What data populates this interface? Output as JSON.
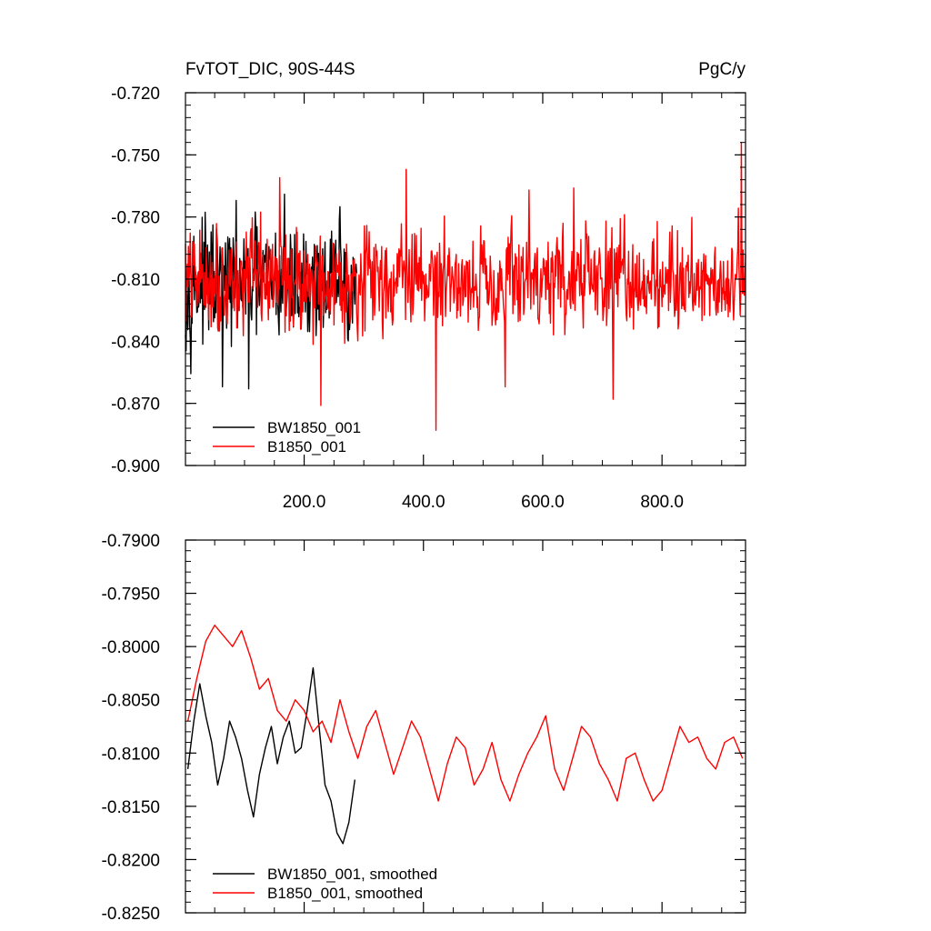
{
  "chart_data": [
    {
      "type": "line",
      "title_left": "FvTOT_DIC, 90S-44S",
      "title_right": "PgC/y",
      "xlabel": "",
      "ylabel": "",
      "xlim": [
        1,
        940
      ],
      "ylim": [
        -0.9,
        -0.72
      ],
      "x_ticks": [
        200,
        400,
        600,
        800
      ],
      "x_tick_labels": [
        "200.0",
        "400.0",
        "600.0",
        "800.0"
      ],
      "y_ticks": [
        -0.72,
        -0.75,
        -0.78,
        -0.81,
        -0.84,
        -0.87,
        -0.9
      ],
      "y_tick_labels": [
        "-0.720",
        "-0.750",
        "-0.780",
        "-0.810",
        "-0.840",
        "-0.870",
        "-0.900"
      ],
      "legend_position": "bottom-left",
      "series": [
        {
          "name": "BW1850_001",
          "color": "#000000",
          "x_start": 1,
          "x_end": 288,
          "mean": -0.812,
          "amplitude": 0.016,
          "extremes": [
            [
              107,
              -0.863
            ],
            [
              167,
              -0.769
            ],
            [
              63,
              -0.862
            ],
            [
              260,
              -0.775
            ]
          ]
        },
        {
          "name": "B1850_001",
          "color": "#ff0000",
          "x_start": 1,
          "x_end": 940,
          "mean": -0.81,
          "amplitude": 0.014,
          "extremes": [
            [
              421,
              -0.883
            ],
            [
              228,
              -0.871
            ],
            [
              537,
              -0.862
            ],
            [
              718,
              -0.868
            ],
            [
              933,
              -0.744
            ],
            [
              371,
              -0.757
            ],
            [
              577,
              -0.767
            ],
            [
              652,
              -0.766
            ],
            [
              159,
              -0.761
            ]
          ]
        }
      ]
    },
    {
      "type": "line",
      "title": "",
      "xlabel": "",
      "ylabel": "",
      "xlim": [
        1,
        940
      ],
      "ylim": [
        -0.825,
        -0.79
      ],
      "x_ticks": [
        200,
        400,
        600,
        800
      ],
      "y_ticks": [
        -0.79,
        -0.795,
        -0.8,
        -0.805,
        -0.81,
        -0.815,
        -0.82,
        -0.825
      ],
      "y_tick_labels": [
        "-0.7900",
        "-0.7950",
        "-0.8000",
        "-0.8050",
        "-0.8100",
        "-0.8150",
        "-0.8200",
        "-0.8250"
      ],
      "legend_position": "bottom-left",
      "series": [
        {
          "name": "BW1850_001, smoothed",
          "color": "#000000",
          "x": [
            5,
            15,
            25,
            35,
            45,
            55,
            65,
            75,
            85,
            95,
            105,
            115,
            125,
            135,
            145,
            155,
            165,
            175,
            185,
            195,
            205,
            215,
            225,
            235,
            245,
            255,
            265,
            275,
            285
          ],
          "y": [
            -0.8115,
            -0.807,
            -0.8035,
            -0.8065,
            -0.809,
            -0.813,
            -0.8105,
            -0.807,
            -0.8085,
            -0.8105,
            -0.8135,
            -0.816,
            -0.812,
            -0.8095,
            -0.8075,
            -0.811,
            -0.8085,
            -0.807,
            -0.81,
            -0.8095,
            -0.806,
            -0.802,
            -0.8075,
            -0.813,
            -0.8145,
            -0.8175,
            -0.8185,
            -0.8165,
            -0.8125
          ]
        },
        {
          "name": "B1850_001, smoothed",
          "color": "#ff0000",
          "x": [
            5,
            20,
            35,
            50,
            65,
            80,
            95,
            110,
            125,
            140,
            155,
            170,
            185,
            200,
            215,
            230,
            245,
            260,
            275,
            290,
            305,
            320,
            335,
            350,
            365,
            380,
            395,
            410,
            425,
            440,
            455,
            470,
            485,
            500,
            515,
            530,
            545,
            560,
            575,
            590,
            605,
            620,
            635,
            650,
            665,
            680,
            695,
            710,
            725,
            740,
            755,
            770,
            785,
            800,
            815,
            830,
            845,
            860,
            875,
            890,
            905,
            920,
            935
          ],
          "y": [
            -0.807,
            -0.803,
            -0.7995,
            -0.798,
            -0.799,
            -0.8,
            -0.7985,
            -0.801,
            -0.804,
            -0.803,
            -0.806,
            -0.807,
            -0.805,
            -0.806,
            -0.808,
            -0.807,
            -0.809,
            -0.805,
            -0.808,
            -0.8105,
            -0.8075,
            -0.806,
            -0.809,
            -0.812,
            -0.8095,
            -0.807,
            -0.8085,
            -0.8115,
            -0.8145,
            -0.811,
            -0.8085,
            -0.8095,
            -0.813,
            -0.8115,
            -0.809,
            -0.8125,
            -0.8145,
            -0.812,
            -0.81,
            -0.8085,
            -0.8065,
            -0.8115,
            -0.8135,
            -0.8105,
            -0.8075,
            -0.8085,
            -0.811,
            -0.8125,
            -0.8145,
            -0.8105,
            -0.81,
            -0.8125,
            -0.8145,
            -0.8135,
            -0.8105,
            -0.8075,
            -0.809,
            -0.8085,
            -0.8105,
            -0.8115,
            -0.809,
            -0.8085,
            -0.8105
          ]
        }
      ]
    }
  ]
}
